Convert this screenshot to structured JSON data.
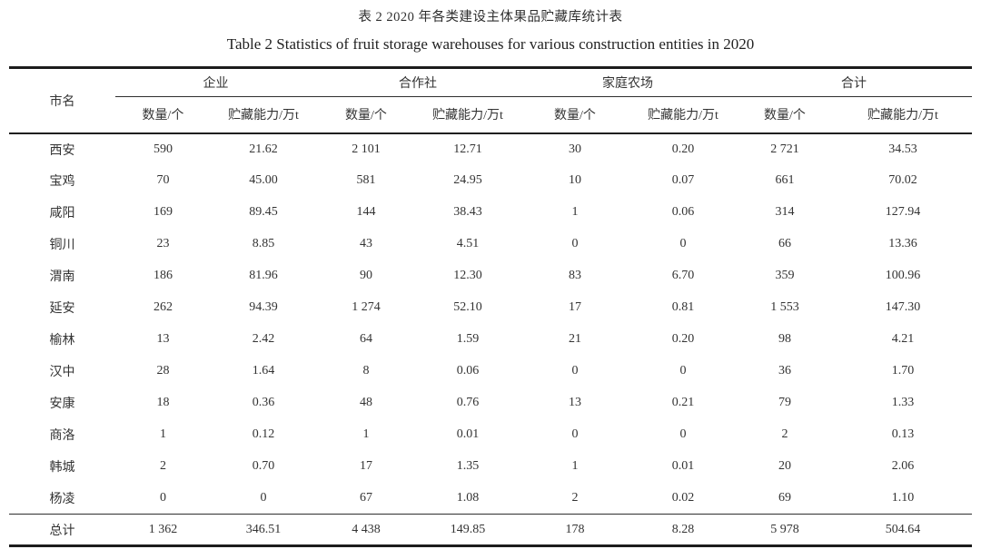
{
  "titles": {
    "cn": "表 2 2020 年各类建设主体果品贮藏库统计表",
    "en": "Table 2 Statistics of fruit storage warehouses for various construction entities in 2020"
  },
  "table": {
    "city_header": "市名",
    "groups": [
      {
        "label": "企业",
        "sub": [
          "数量/个",
          "贮藏能力/万t"
        ]
      },
      {
        "label": "合作社",
        "sub": [
          "数量/个",
          "贮藏能力/万t"
        ]
      },
      {
        "label": "家庭农场",
        "sub": [
          "数量/个",
          "贮藏能力/万t"
        ]
      },
      {
        "label": "合计",
        "sub": [
          "数量/个",
          "贮藏能力/万t"
        ]
      }
    ],
    "rows": [
      [
        "西安",
        "590",
        "21.62",
        "2 101",
        "12.71",
        "30",
        "0.20",
        "2 721",
        "34.53"
      ],
      [
        "宝鸡",
        "70",
        "45.00",
        "581",
        "24.95",
        "10",
        "0.07",
        "661",
        "70.02"
      ],
      [
        "咸阳",
        "169",
        "89.45",
        "144",
        "38.43",
        "1",
        "0.06",
        "314",
        "127.94"
      ],
      [
        "铜川",
        "23",
        "8.85",
        "43",
        "4.51",
        "0",
        "0",
        "66",
        "13.36"
      ],
      [
        "渭南",
        "186",
        "81.96",
        "90",
        "12.30",
        "83",
        "6.70",
        "359",
        "100.96"
      ],
      [
        "延安",
        "262",
        "94.39",
        "1 274",
        "52.10",
        "17",
        "0.81",
        "1 553",
        "147.30"
      ],
      [
        "榆林",
        "13",
        "2.42",
        "64",
        "1.59",
        "21",
        "0.20",
        "98",
        "4.21"
      ],
      [
        "汉中",
        "28",
        "1.64",
        "8",
        "0.06",
        "0",
        "0",
        "36",
        "1.70"
      ],
      [
        "安康",
        "18",
        "0.36",
        "48",
        "0.76",
        "13",
        "0.21",
        "79",
        "1.33"
      ],
      [
        "商洛",
        "1",
        "0.12",
        "1",
        "0.01",
        "0",
        "0",
        "2",
        "0.13"
      ],
      [
        "韩城",
        "2",
        "0.70",
        "17",
        "1.35",
        "1",
        "0.01",
        "20",
        "2.06"
      ],
      [
        "杨凌",
        "0",
        "0",
        "67",
        "1.08",
        "2",
        "0.02",
        "69",
        "1.10"
      ]
    ],
    "total_row": [
      "总计",
      "1 362",
      "346.51",
      "4 438",
      "149.85",
      "178",
      "8.28",
      "5 978",
      "504.64"
    ]
  }
}
